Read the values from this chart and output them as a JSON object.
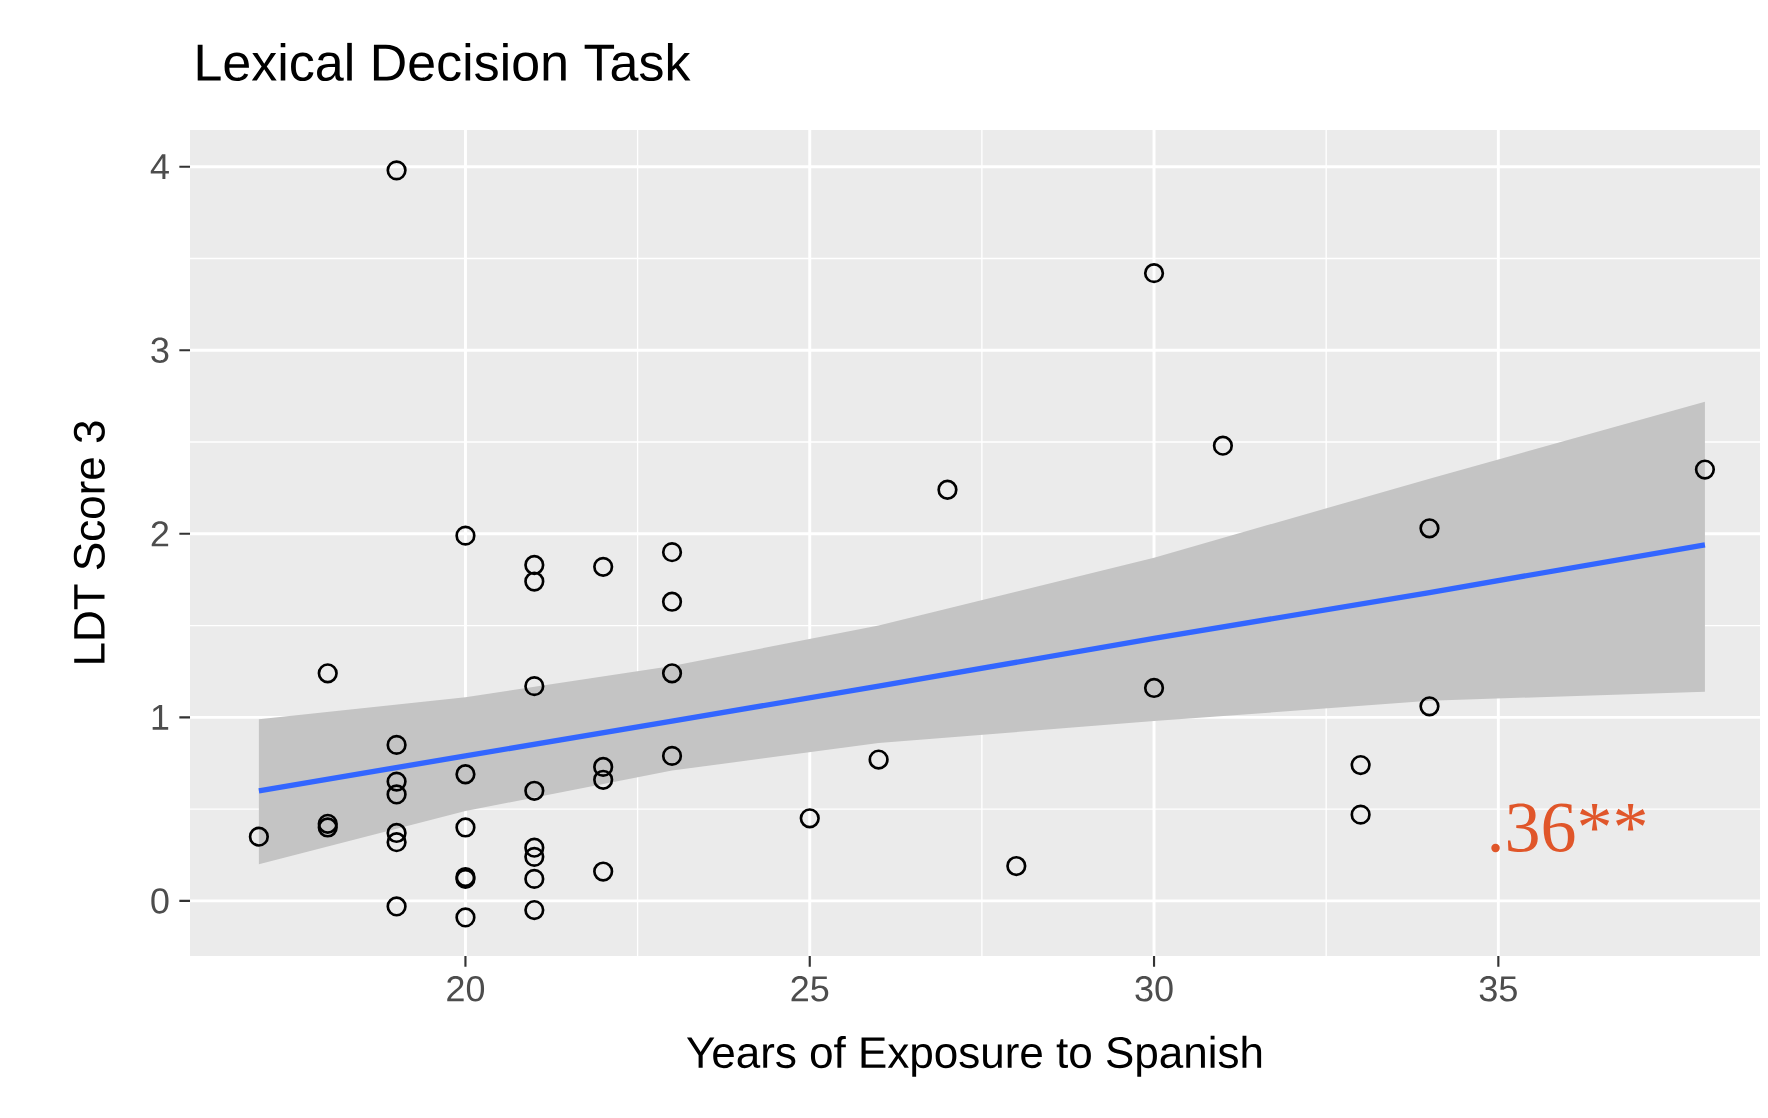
{
  "chart_data": {
    "type": "scatter",
    "title": "Lexical Decision Task",
    "xlabel": "Years of Exposure to Spanish",
    "ylabel": "LDT Score 3",
    "xlim": [
      16,
      38.8
    ],
    "ylim": [
      -0.3,
      4.2
    ],
    "xticks": [
      20,
      25,
      30,
      35
    ],
    "yticks": [
      0,
      1,
      2,
      3,
      4
    ],
    "grid": true,
    "annotations": [
      ".36**"
    ],
    "series": [
      {
        "marker": "circle",
        "color": "#000000",
        "x": [
          17,
          18,
          18,
          18,
          19,
          19,
          19,
          19,
          19,
          19,
          19,
          20,
          20,
          20,
          20,
          20,
          20,
          21,
          21,
          21,
          21,
          21,
          21,
          21,
          21,
          22,
          22,
          22,
          22,
          23,
          23,
          23,
          23,
          25,
          26,
          27,
          28,
          30,
          30,
          31,
          33,
          33,
          34,
          34,
          38
        ],
        "values": [
          0.35,
          1.24,
          0.42,
          0.4,
          3.98,
          0.85,
          0.65,
          0.58,
          0.37,
          0.32,
          -0.03,
          1.99,
          0.69,
          0.4,
          0.13,
          0.12,
          -0.09,
          1.83,
          1.74,
          1.17,
          0.6,
          0.29,
          0.24,
          0.12,
          -0.05,
          1.82,
          0.73,
          0.66,
          0.16,
          1.9,
          1.63,
          1.24,
          0.79,
          0.45,
          0.77,
          2.24,
          0.19,
          3.42,
          1.16,
          2.48,
          0.74,
          0.47,
          2.03,
          1.06,
          2.35
        ]
      },
      {
        "type": "line",
        "marker": "none",
        "color": "#3366ff",
        "x": [
          17,
          20,
          23,
          26,
          30,
          34,
          38
        ],
        "values": [
          0.6,
          0.79,
          0.98,
          1.17,
          1.43,
          1.68,
          1.94
        ],
        "lower": [
          0.2,
          0.49,
          0.71,
          0.86,
          0.98,
          1.09,
          1.14
        ],
        "upper": [
          0.99,
          1.11,
          1.28,
          1.5,
          1.87,
          2.3,
          2.72
        ]
      }
    ]
  }
}
